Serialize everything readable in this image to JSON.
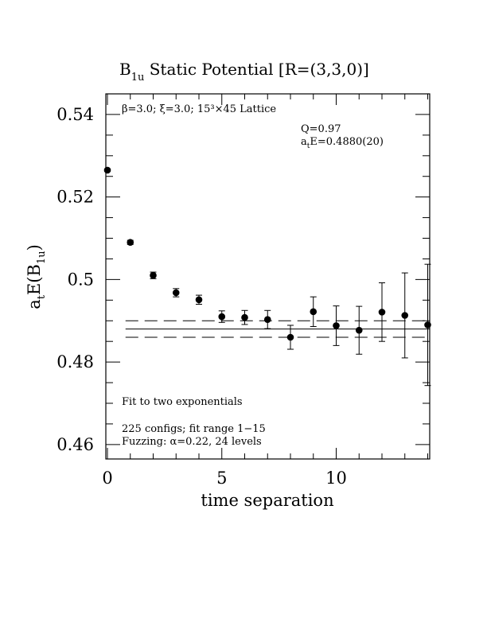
{
  "chart_data": {
    "type": "scatter",
    "title": "B",
    "title_sub": "1u",
    "title_rest": " Static Potential [R=(3,3,0)]",
    "xlabel": "time separation",
    "ylabel_main": "a",
    "ylabel_sub_t": "t",
    "ylabel_mid": "E(B",
    "ylabel_sub_1u": "1u",
    "ylabel_end": ")",
    "xlim": [
      0,
      14
    ],
    "ylim": [
      0.4565,
      0.545
    ],
    "x_major_ticks": [
      0,
      5,
      10
    ],
    "x_tick_labels": [
      "0",
      "5",
      "10"
    ],
    "y_major_ticks": [
      0.46,
      0.48,
      0.5,
      0.52,
      0.54
    ],
    "y_tick_labels": [
      "0.46",
      "0.48",
      "0.5",
      "0.52",
      "0.54"
    ],
    "y_minor_step": 0.005,
    "x_minor_step": 1,
    "grid": false,
    "points": [
      {
        "x": 0,
        "y": 0.5265,
        "err": 0.0003
      },
      {
        "x": 1,
        "y": 0.509,
        "err": 0.0005
      },
      {
        "x": 2,
        "y": 0.501,
        "err": 0.0008
      },
      {
        "x": 3,
        "y": 0.4968,
        "err": 0.001
      },
      {
        "x": 4,
        "y": 0.4951,
        "err": 0.0011
      },
      {
        "x": 5,
        "y": 0.491,
        "err": 0.0014
      },
      {
        "x": 6,
        "y": 0.4908,
        "err": 0.0017
      },
      {
        "x": 7,
        "y": 0.4903,
        "err": 0.0022
      },
      {
        "x": 8,
        "y": 0.486,
        "err": 0.0029
      },
      {
        "x": 9,
        "y": 0.4922,
        "err": 0.0036
      },
      {
        "x": 10,
        "y": 0.4888,
        "err": 0.0048
      },
      {
        "x": 11,
        "y": 0.4877,
        "err": 0.0058
      },
      {
        "x": 12,
        "y": 0.4921,
        "err": 0.0071
      },
      {
        "x": 13,
        "y": 0.4913,
        "err": 0.0103
      },
      {
        "x": 14,
        "y": 0.489,
        "err": 0.0147
      }
    ],
    "fit": {
      "value": 0.488,
      "error": 0.002,
      "x_start": 1,
      "x_end": 15
    },
    "annotations": {
      "lattice": "β=3.0; ξ=3.0; 15³×45 Lattice",
      "q_value": "Q=0.97",
      "fit_energy_prefix": "a",
      "fit_energy_sub": "t",
      "fit_energy_rest": "E=0.4880(20)",
      "fit_type": "Fit to two exponentials",
      "configs": "225 configs; fit range 1−15",
      "fuzzing": "Fuzzing: α=0.22, 24 levels"
    }
  }
}
